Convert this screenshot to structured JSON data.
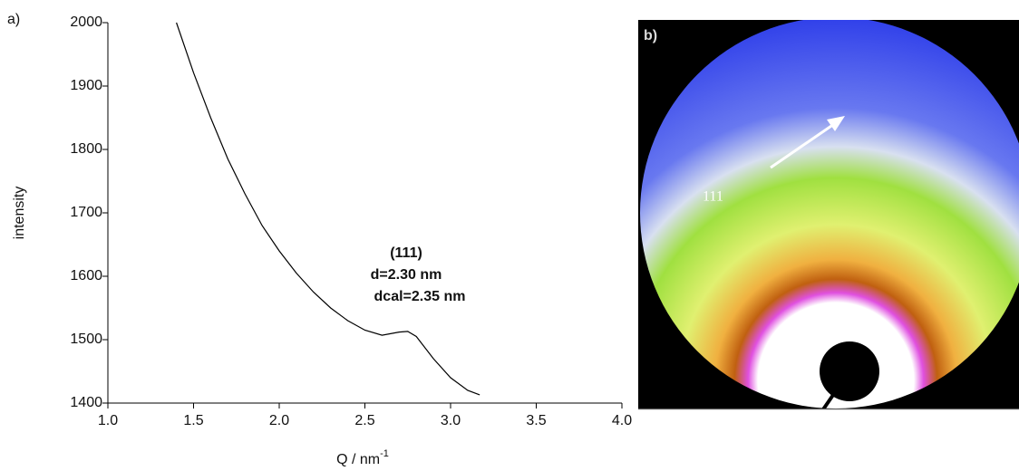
{
  "chart_data": {
    "type": "line",
    "panel_label": "a)",
    "y_label": "intensity",
    "x_label": "Q / nm",
    "x_label_sup": "-1",
    "annotations": [
      "(111)",
      "d=2.30 nm",
      "dcal=2.35 nm"
    ],
    "x": [
      1.4,
      1.5,
      1.6,
      1.7,
      1.8,
      1.9,
      2.0,
      2.1,
      2.2,
      2.3,
      2.4,
      2.5,
      2.6,
      2.7,
      2.75,
      2.8,
      2.9,
      3.0,
      3.1,
      3.17
    ],
    "series": [
      {
        "color": "#000000",
        "values": [
          2000,
          1921,
          1850,
          1785,
          1730,
          1680,
          1640,
          1605,
          1575,
          1550,
          1530,
          1515,
          1507,
          1512,
          1513,
          1505,
          1470,
          1440,
          1420,
          1413
        ]
      }
    ],
    "xlim": [
      1,
      4
    ],
    "ylim": [
      1400,
      2000
    ],
    "xticks": [
      {
        "value": 1,
        "label": "1.0"
      },
      {
        "value": 1.5,
        "label": "1.5"
      },
      {
        "value": 2,
        "label": "2.0"
      },
      {
        "value": 2.5,
        "label": "2.5"
      },
      {
        "value": 3,
        "label": "3.0"
      },
      {
        "value": 3.5,
        "label": "3.5"
      },
      {
        "value": 4,
        "label": "4.0"
      }
    ],
    "yticks": [
      1400,
      1500,
      1600,
      1700,
      1800,
      1900,
      2000
    ],
    "grid": false
  },
  "image_panel": {
    "panel_label": "b)",
    "arrow_label": "111"
  }
}
